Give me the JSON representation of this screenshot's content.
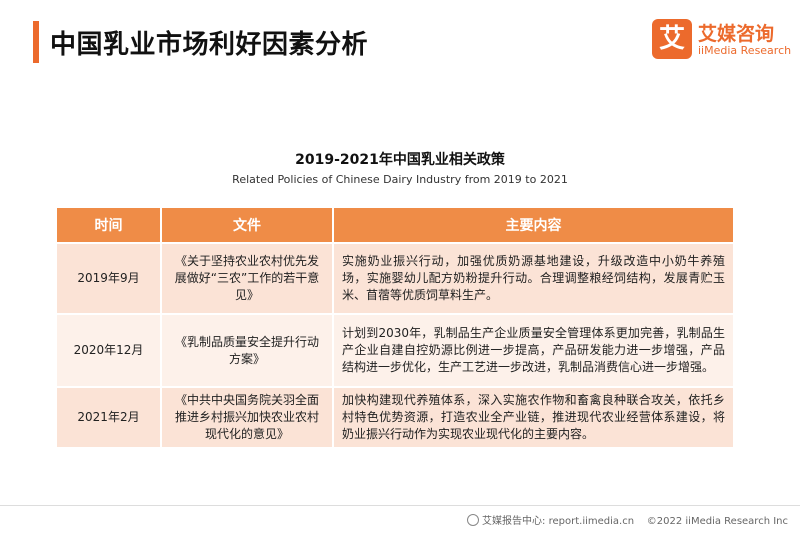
{
  "header": {
    "title": "中国乳业市场利好因素分析"
  },
  "logo": {
    "mark": "艾",
    "cn": "艾媒咨询",
    "en": "iiMedia Research"
  },
  "table": {
    "title": "2019-2021年中国乳业相关政策",
    "subtitle": "Related Policies of Chinese Dairy Industry from 2019 to 2021",
    "columns": [
      "时间",
      "文件",
      "主要内容"
    ],
    "rows": [
      {
        "time": "2019年9月",
        "doc": "《关于坚持农业农村优先发展做好“三农”工作的若干意见》",
        "content": "实施奶业振兴行动，加强优质奶源基地建设，升级改造中小奶牛养殖场，实施婴幼儿配方奶粉提升行动。合理调整粮经饲结构，发展青贮玉米、苜蓿等优质饲草料生产。"
      },
      {
        "time": "2020年12月",
        "doc": "《乳制品质量安全提升行动方案》",
        "content": "计划到2030年，乳制品生产企业质量安全管理体系更加完善，乳制品生产企业自建自控奶源比例进一步提高，产品研发能力进一步增强，产品结构进一步优化，生产工艺进一步改进，乳制品消费信心进一步增强。"
      },
      {
        "time": "2021年2月",
        "doc": "《中共中央国务院关羽全面推进乡村振兴加快农业农村现代化的意见》",
        "content": "加快构建现代养殖体系，深入实施农作物和畜禽良种联合攻关，依托乡村特色优势资源，打造农业全产业链，推进现代农业经营体系建设，将奶业振兴行动作为实现农业现代化的主要内容。"
      }
    ]
  },
  "footer": {
    "source": "艾媒报告中心: report.iimedia.cn",
    "copyright": "©2022  iiMedia Research  Inc"
  }
}
